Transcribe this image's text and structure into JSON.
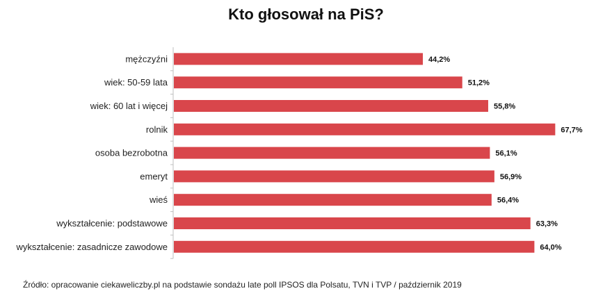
{
  "title": "Kto głosował na PiS?",
  "source": "Źródło: opracowanie ciekaweliczby.pl na podstawie sondażu late poll IPSOS dla Polsatu, TVN i TVP / październik 2019",
  "chart_data": {
    "type": "bar",
    "orientation": "horizontal",
    "title": "Kto głosował na PiS?",
    "categories": [
      "mężczyźni",
      "wiek: 50-59 lata",
      "wiek: 60 lat i więcej",
      "rolnik",
      "osoba bezrobotna",
      "emeryt",
      "wieś",
      "wykształcenie: podstawowe",
      "wykształcenie: zasadnicze zawodowe"
    ],
    "values": [
      44.2,
      51.2,
      55.8,
      67.7,
      56.1,
      56.9,
      56.4,
      63.3,
      64.0
    ],
    "value_labels": [
      "44,2%",
      "51,2%",
      "55,8%",
      "67,7%",
      "56,1%",
      "56,9%",
      "56,4%",
      "63,3%",
      "64,0%"
    ],
    "xlim": [
      0,
      70
    ],
    "bar_color": "#d9464b",
    "grid": false,
    "legend": "none"
  }
}
